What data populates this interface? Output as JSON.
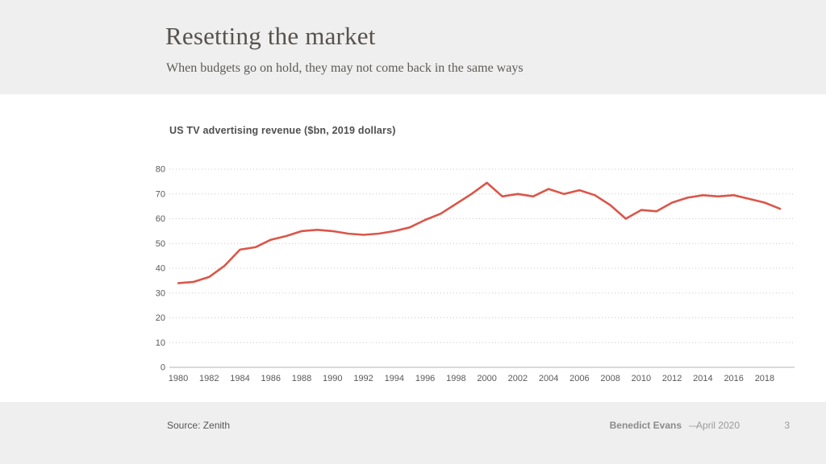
{
  "header": {
    "title": "Resetting the market",
    "subtitle": "When budgets go on hold, they may not come back in the same ways"
  },
  "chart": {
    "title": "US TV advertising revenue ($bn, 2019 dollars)"
  },
  "chart_data": {
    "type": "line",
    "title": "US TV advertising revenue ($bn, 2019 dollars)",
    "x": [
      1980,
      1981,
      1982,
      1983,
      1984,
      1985,
      1986,
      1987,
      1988,
      1989,
      1990,
      1991,
      1992,
      1993,
      1994,
      1995,
      1996,
      1997,
      1998,
      1999,
      2000,
      2001,
      2002,
      2003,
      2004,
      2005,
      2006,
      2007,
      2008,
      2009,
      2010,
      2011,
      2012,
      2013,
      2014,
      2015,
      2016,
      2017,
      2018,
      2019
    ],
    "values": [
      34,
      34.5,
      36.5,
      41,
      47.5,
      48.5,
      51.5,
      53,
      55,
      55.5,
      55,
      54,
      53.5,
      54,
      55,
      56.5,
      59.5,
      62,
      66,
      70,
      74.5,
      69,
      70,
      69,
      72,
      70,
      71.5,
      69.5,
      65.5,
      60,
      63.5,
      63,
      66.5,
      68.5,
      69.5,
      69,
      69.5,
      68,
      66.5,
      64
    ],
    "xlabel": "",
    "ylabel": "",
    "ylim": [
      0,
      80
    ],
    "yticks": [
      0,
      10,
      20,
      30,
      40,
      50,
      60,
      70,
      80
    ],
    "xtick_years": [
      1980,
      1982,
      1984,
      1986,
      1988,
      1990,
      1992,
      1994,
      1996,
      1998,
      2000,
      2002,
      2004,
      2006,
      2008,
      2010,
      2012,
      2014,
      2016,
      2018
    ],
    "grid": "horizontal-dotted",
    "legend": "none",
    "line_color": "#db5649"
  },
  "footer": {
    "source": "Source: Zenith",
    "author": "Benedict Evans",
    "separator": "—",
    "date": "April 2020",
    "page_number": "3"
  },
  "colors": {
    "band_bg": "#efefef",
    "content_bg": "#ffffff",
    "line": "#db5649",
    "gridline": "#c9c9c9",
    "baseline": "#b3b3b3",
    "axis_text": "#595959"
  }
}
